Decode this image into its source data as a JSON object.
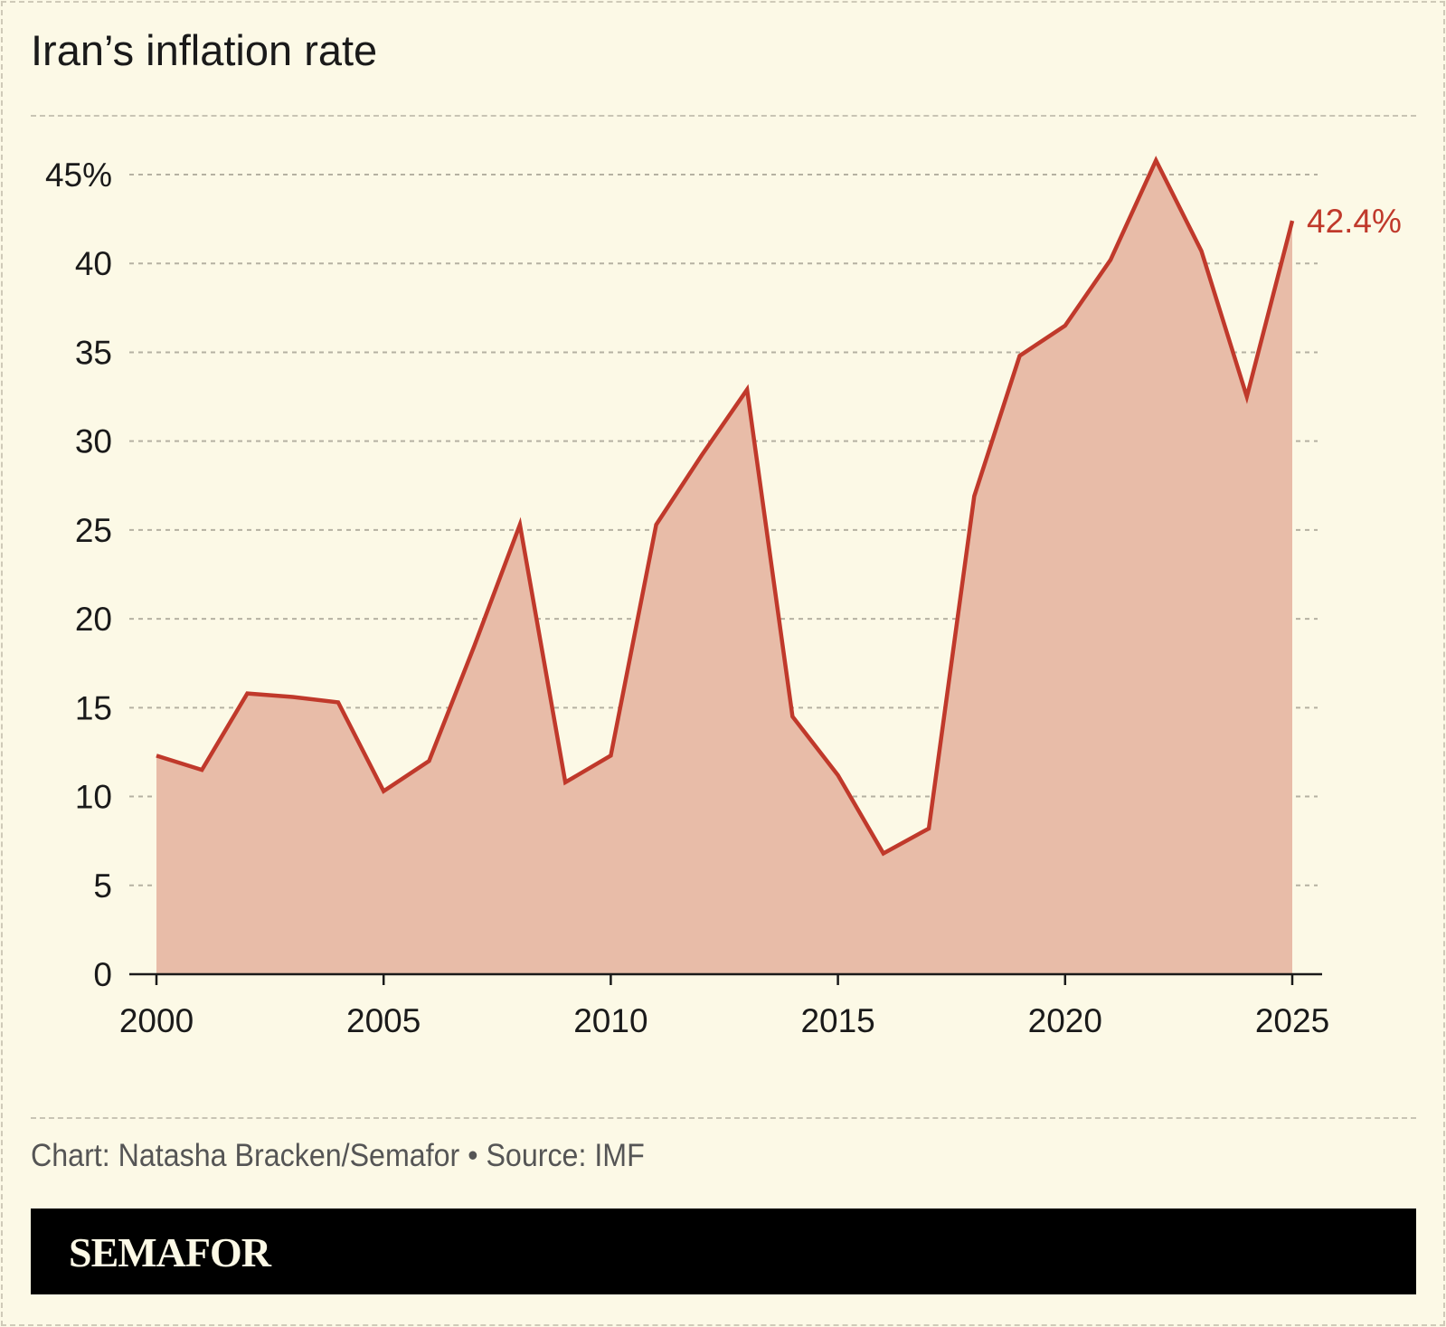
{
  "title": "Iran’s inflation rate",
  "source": "Chart: Natasha Bracken/Semafor • Source: IMF",
  "logo": "SEMAFOR",
  "colors": {
    "line": "#c0392b",
    "fill": "#e8bca8",
    "background": "#fcf9e6"
  },
  "chart_data": {
    "type": "area",
    "title": "Iran’s inflation rate",
    "x": [
      2000,
      2001,
      2002,
      2003,
      2004,
      2005,
      2006,
      2007,
      2008,
      2009,
      2010,
      2011,
      2012,
      2013,
      2014,
      2015,
      2016,
      2017,
      2018,
      2019,
      2020,
      2021,
      2022,
      2023,
      2024,
      2025
    ],
    "values": [
      12.3,
      11.5,
      15.8,
      15.6,
      15.3,
      10.3,
      12.0,
      18.5,
      25.3,
      10.8,
      12.3,
      25.3,
      29.2,
      32.9,
      14.5,
      11.2,
      6.8,
      8.2,
      26.9,
      34.8,
      36.5,
      40.2,
      45.8,
      40.7,
      32.5,
      42.4
    ],
    "ylim": [
      0,
      45
    ],
    "xlim": [
      2000,
      2025
    ],
    "y_ticks": [
      "0",
      "5",
      "10",
      "15",
      "20",
      "25",
      "30",
      "35",
      "40",
      "45%"
    ],
    "y_tick_values": [
      0,
      5,
      10,
      15,
      20,
      25,
      30,
      35,
      40,
      45
    ],
    "x_ticks": [
      "2000",
      "2005",
      "2010",
      "2015",
      "2020",
      "2025"
    ],
    "x_tick_values": [
      2000,
      2005,
      2010,
      2015,
      2020,
      2025
    ],
    "end_label": "42.4%",
    "grid": true
  }
}
